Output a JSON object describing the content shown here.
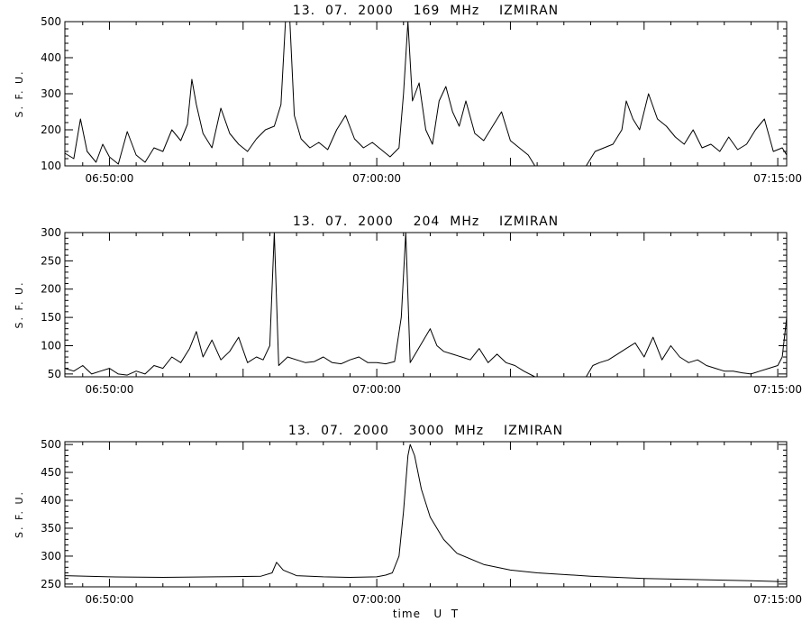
{
  "chart_data": [
    {
      "type": "line",
      "title": "13.  07.  2000    169  MHz    IZMIRAN",
      "ylabel": "S. F. U.",
      "xlabel": "",
      "x_range": [
        "06:48:20",
        "07:15:20"
      ],
      "ylim": [
        100,
        500
      ],
      "y_ticks": [
        100,
        200,
        300,
        400,
        500
      ],
      "x_ticks": [
        "06:50:00",
        "07:00:00",
        "07:15:00"
      ],
      "grid": false,
      "series": [
        {
          "points": [
            [
              "06:48:20",
              135
            ],
            [
              "06:48:40",
              120
            ],
            [
              "06:48:55",
              230
            ],
            [
              "06:49:10",
              140
            ],
            [
              "06:49:30",
              110
            ],
            [
              "06:49:45",
              160
            ],
            [
              "06:50:00",
              125
            ],
            [
              "06:50:20",
              105
            ],
            [
              "06:50:40",
              195
            ],
            [
              "06:51:00",
              130
            ],
            [
              "06:51:20",
              110
            ],
            [
              "06:51:40",
              150
            ],
            [
              "06:52:00",
              140
            ],
            [
              "06:52:20",
              200
            ],
            [
              "06:52:40",
              170
            ],
            [
              "06:52:55",
              215
            ],
            [
              "06:53:05",
              340
            ],
            [
              "06:53:15",
              270
            ],
            [
              "06:53:30",
              190
            ],
            [
              "06:53:50",
              150
            ],
            [
              "06:54:10",
              260
            ],
            [
              "06:54:30",
              190
            ],
            [
              "06:54:50",
              160
            ],
            [
              "06:55:10",
              140
            ],
            [
              "06:55:30",
              175
            ],
            [
              "06:55:50",
              200
            ],
            [
              "06:56:10",
              210
            ],
            [
              "06:56:25",
              270
            ],
            [
              "06:56:35",
              500
            ],
            [
              "06:56:45",
              500
            ],
            [
              "06:56:55",
              240
            ],
            [
              "06:57:10",
              175
            ],
            [
              "06:57:30",
              150
            ],
            [
              "06:57:50",
              165
            ],
            [
              "06:58:10",
              145
            ],
            [
              "06:58:30",
              200
            ],
            [
              "06:58:50",
              240
            ],
            [
              "06:59:10",
              175
            ],
            [
              "06:59:30",
              150
            ],
            [
              "06:59:50",
              165
            ],
            [
              "07:00:10",
              145
            ],
            [
              "07:00:30",
              125
            ],
            [
              "07:00:50",
              150
            ],
            [
              "07:01:00",
              300
            ],
            [
              "07:01:10",
              500
            ],
            [
              "07:01:20",
              280
            ],
            [
              "07:01:35",
              330
            ],
            [
              "07:01:50",
              200
            ],
            [
              "07:02:05",
              160
            ],
            [
              "07:02:20",
              280
            ],
            [
              "07:02:35",
              320
            ],
            [
              "07:02:50",
              250
            ],
            [
              "07:03:05",
              210
            ],
            [
              "07:03:20",
              280
            ],
            [
              "07:03:40",
              190
            ],
            [
              "07:04:00",
              170
            ],
            [
              "07:04:20",
              210
            ],
            [
              "07:04:40",
              250
            ],
            [
              "07:05:00",
              170
            ],
            [
              "07:05:20",
              150
            ],
            [
              "07:05:40",
              130
            ],
            [
              "07:05:55",
              100
            ],
            null,
            [
              "07:07:50",
              100
            ],
            [
              "07:08:10",
              140
            ],
            [
              "07:08:30",
              150
            ],
            [
              "07:08:50",
              160
            ],
            [
              "07:09:10",
              200
            ],
            [
              "07:09:20",
              280
            ],
            [
              "07:09:35",
              230
            ],
            [
              "07:09:50",
              200
            ],
            [
              "07:10:10",
              300
            ],
            [
              "07:10:30",
              230
            ],
            [
              "07:10:50",
              210
            ],
            [
              "07:11:10",
              180
            ],
            [
              "07:11:30",
              160
            ],
            [
              "07:11:50",
              200
            ],
            [
              "07:12:10",
              150
            ],
            [
              "07:12:30",
              160
            ],
            [
              "07:12:50",
              140
            ],
            [
              "07:13:10",
              180
            ],
            [
              "07:13:30",
              145
            ],
            [
              "07:13:50",
              160
            ],
            [
              "07:14:10",
              200
            ],
            [
              "07:14:30",
              230
            ],
            [
              "07:14:50",
              140
            ],
            [
              "07:15:10",
              150
            ],
            [
              "07:15:20",
              130
            ]
          ]
        }
      ]
    },
    {
      "type": "line",
      "title": "13.  07.  2000    204  MHz    IZMIRAN",
      "ylabel": "S. F. U.",
      "xlabel": "",
      "x_range": [
        "06:48:20",
        "07:15:20"
      ],
      "ylim": [
        45,
        300
      ],
      "y_ticks": [
        50,
        100,
        150,
        200,
        250,
        300
      ],
      "x_ticks": [
        "06:50:00",
        "07:00:00",
        "07:15:00"
      ],
      "grid": false,
      "series": [
        {
          "points": [
            [
              "06:48:20",
              60
            ],
            [
              "06:48:40",
              55
            ],
            [
              "06:49:00",
              65
            ],
            [
              "06:49:20",
              50
            ],
            [
              "06:49:40",
              55
            ],
            [
              "06:50:00",
              60
            ],
            [
              "06:50:20",
              50
            ],
            [
              "06:50:40",
              48
            ],
            [
              "06:51:00",
              55
            ],
            [
              "06:51:20",
              50
            ],
            [
              "06:51:40",
              65
            ],
            [
              "06:52:00",
              60
            ],
            [
              "06:52:20",
              80
            ],
            [
              "06:52:40",
              70
            ],
            [
              "06:53:00",
              95
            ],
            [
              "06:53:15",
              125
            ],
            [
              "06:53:30",
              80
            ],
            [
              "06:53:50",
              110
            ],
            [
              "06:54:10",
              75
            ],
            [
              "06:54:30",
              90
            ],
            [
              "06:54:50",
              115
            ],
            [
              "06:55:10",
              70
            ],
            [
              "06:55:30",
              80
            ],
            [
              "06:55:45",
              75
            ],
            [
              "06:56:00",
              100
            ],
            [
              "06:56:10",
              300
            ],
            [
              "06:56:20",
              65
            ],
            [
              "06:56:40",
              80
            ],
            [
              "06:57:00",
              75
            ],
            [
              "06:57:20",
              70
            ],
            [
              "06:57:40",
              72
            ],
            [
              "06:58:00",
              80
            ],
            [
              "06:58:20",
              70
            ],
            [
              "06:58:40",
              68
            ],
            [
              "06:59:00",
              75
            ],
            [
              "06:59:20",
              80
            ],
            [
              "06:59:40",
              70
            ],
            [
              "07:00:00",
              70
            ],
            [
              "07:00:20",
              68
            ],
            [
              "07:00:40",
              72
            ],
            [
              "07:00:55",
              150
            ],
            [
              "07:01:05",
              300
            ],
            [
              "07:01:15",
              70
            ],
            [
              "07:01:30",
              90
            ],
            [
              "07:01:45",
              110
            ],
            [
              "07:02:00",
              130
            ],
            [
              "07:02:15",
              100
            ],
            [
              "07:02:30",
              90
            ],
            [
              "07:02:50",
              85
            ],
            [
              "07:03:10",
              80
            ],
            [
              "07:03:30",
              75
            ],
            [
              "07:03:50",
              95
            ],
            [
              "07:04:10",
              70
            ],
            [
              "07:04:30",
              85
            ],
            [
              "07:04:50",
              70
            ],
            [
              "07:05:10",
              65
            ],
            [
              "07:05:30",
              55
            ],
            [
              "07:05:55",
              45
            ],
            null,
            [
              "07:07:50",
              45
            ],
            [
              "07:08:05",
              65
            ],
            [
              "07:08:20",
              70
            ],
            [
              "07:08:40",
              75
            ],
            [
              "07:09:00",
              85
            ],
            [
              "07:09:20",
              95
            ],
            [
              "07:09:40",
              105
            ],
            [
              "07:10:00",
              80
            ],
            [
              "07:10:20",
              115
            ],
            [
              "07:10:40",
              75
            ],
            [
              "07:11:00",
              100
            ],
            [
              "07:11:20",
              80
            ],
            [
              "07:11:40",
              70
            ],
            [
              "07:12:00",
              75
            ],
            [
              "07:12:20",
              65
            ],
            [
              "07:12:40",
              60
            ],
            [
              "07:13:00",
              55
            ],
            [
              "07:13:20",
              55
            ],
            [
              "07:13:40",
              52
            ],
            [
              "07:14:00",
              50
            ],
            [
              "07:14:20",
              55
            ],
            [
              "07:14:40",
              60
            ],
            [
              "07:15:00",
              65
            ],
            [
              "07:15:10",
              80
            ],
            [
              "07:15:20",
              150
            ]
          ]
        }
      ]
    },
    {
      "type": "line",
      "title": "13.  07.  2000    3000  MHz    IZMIRAN",
      "ylabel": "S. F. U.",
      "xlabel": "time   U  T",
      "x_range": [
        "06:48:20",
        "07:15:20"
      ],
      "ylim": [
        245,
        505
      ],
      "y_ticks": [
        250,
        300,
        350,
        400,
        450,
        500
      ],
      "x_ticks": [
        "06:50:00",
        "07:00:00",
        "07:15:00"
      ],
      "grid": false,
      "series": [
        {
          "points": [
            [
              "06:48:20",
              265
            ],
            [
              "06:50:00",
              263
            ],
            [
              "06:52:00",
              262
            ],
            [
              "06:54:00",
              263
            ],
            [
              "06:55:40",
              264
            ],
            [
              "06:56:05",
              270
            ],
            [
              "06:56:15",
              289
            ],
            [
              "06:56:30",
              275
            ],
            [
              "06:57:00",
              265
            ],
            [
              "06:58:00",
              263
            ],
            [
              "06:59:00",
              262
            ],
            [
              "07:00:00",
              263
            ],
            [
              "07:00:20",
              266
            ],
            [
              "07:00:35",
              270
            ],
            [
              "07:00:50",
              300
            ],
            [
              "07:01:00",
              380
            ],
            [
              "07:01:10",
              480
            ],
            [
              "07:01:15",
              500
            ],
            [
              "07:01:25",
              480
            ],
            [
              "07:01:40",
              420
            ],
            [
              "07:02:00",
              370
            ],
            [
              "07:02:30",
              330
            ],
            [
              "07:03:00",
              305
            ],
            [
              "07:04:00",
              285
            ],
            [
              "07:05:00",
              275
            ],
            [
              "07:06:00",
              270
            ],
            [
              "07:08:00",
              264
            ],
            [
              "07:10:00",
              260
            ],
            [
              "07:12:00",
              258
            ],
            [
              "07:14:00",
              256
            ],
            [
              "07:15:20",
              254
            ]
          ]
        }
      ]
    }
  ]
}
